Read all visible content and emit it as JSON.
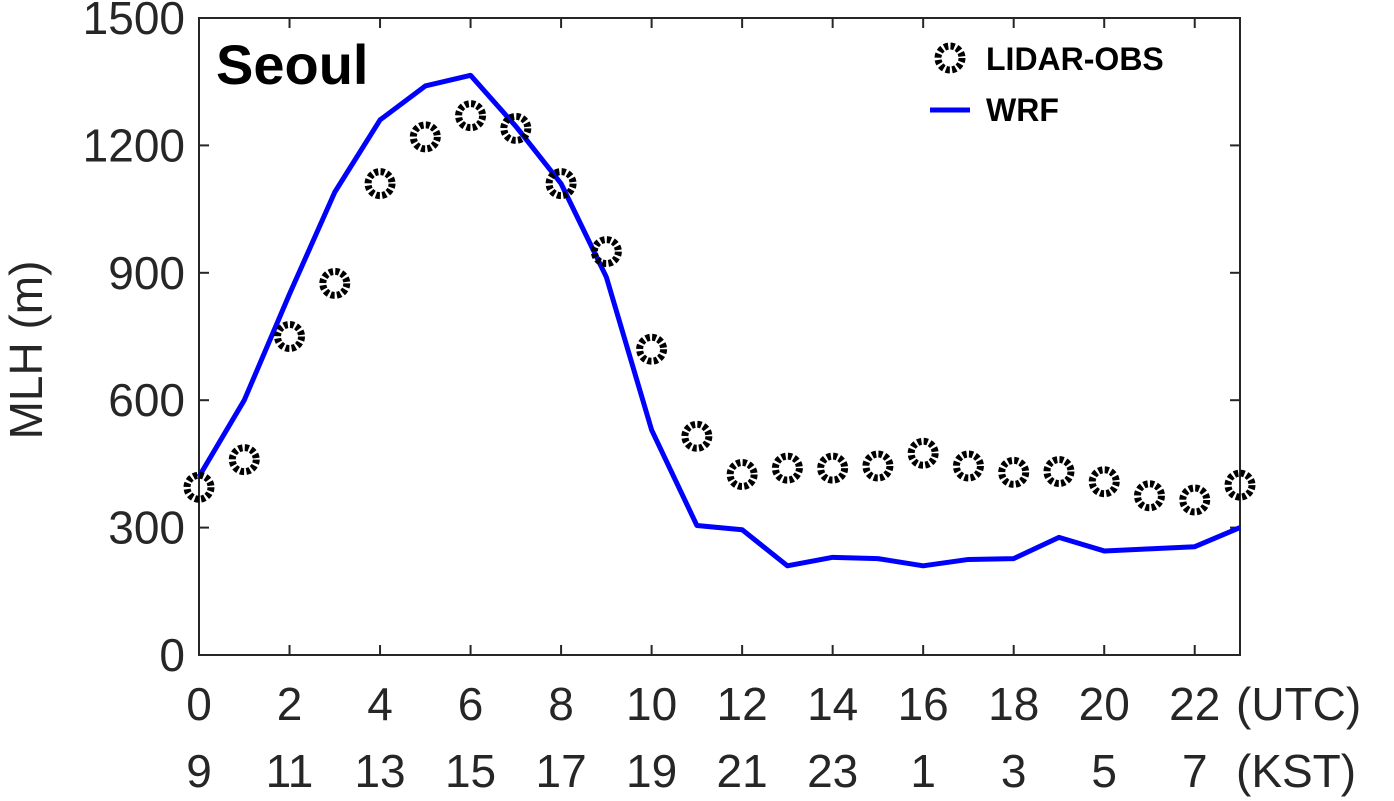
{
  "chart_data": {
    "type": "line",
    "title": "Seoul",
    "ylabel": "MLH (m)",
    "ylim": [
      0,
      1500
    ],
    "yticks": [
      0,
      300,
      600,
      900,
      1200,
      1500
    ],
    "xlim": [
      0,
      23
    ],
    "xticks": [
      0,
      2,
      4,
      6,
      8,
      10,
      12,
      14,
      16,
      18,
      20,
      22
    ],
    "xtick_labels_utc": [
      "0",
      "2",
      "4",
      "6",
      "8",
      "10",
      "12",
      "14",
      "16",
      "18",
      "20",
      "22"
    ],
    "xtick_labels_kst": [
      "9",
      "11",
      "13",
      "15",
      "17",
      "19",
      "21",
      "23",
      "1",
      "3",
      "5",
      "7"
    ],
    "xunit_utc": "(UTC)",
    "xunit_kst": "(KST)",
    "grid": false,
    "legend_position": "top-right",
    "series": [
      {
        "name": "LIDAR-OBS",
        "style": "markers",
        "color": "#000000",
        "x": [
          0,
          1,
          2,
          3,
          4,
          5,
          6,
          7,
          8,
          9,
          10,
          11,
          12,
          13,
          14,
          15,
          16,
          17,
          18,
          19,
          20,
          21,
          22,
          23
        ],
        "values": [
          395,
          460,
          750,
          875,
          1110,
          1220,
          1270,
          1240,
          1110,
          950,
          720,
          515,
          425,
          440,
          440,
          445,
          475,
          445,
          430,
          432,
          408,
          375,
          365,
          400
        ]
      },
      {
        "name": "WRF",
        "style": "line",
        "color": "#0000ff",
        "x": [
          0,
          1,
          2,
          3,
          4,
          5,
          6,
          7,
          8,
          9,
          10,
          11,
          12,
          13,
          14,
          15,
          16,
          17,
          18,
          19,
          20,
          21,
          22,
          23
        ],
        "values": [
          420,
          600,
          850,
          1090,
          1260,
          1340,
          1365,
          1245,
          1110,
          890,
          530,
          305,
          295,
          210,
          230,
          227,
          210,
          225,
          227,
          277,
          245,
          250,
          255,
          300
        ]
      }
    ]
  }
}
